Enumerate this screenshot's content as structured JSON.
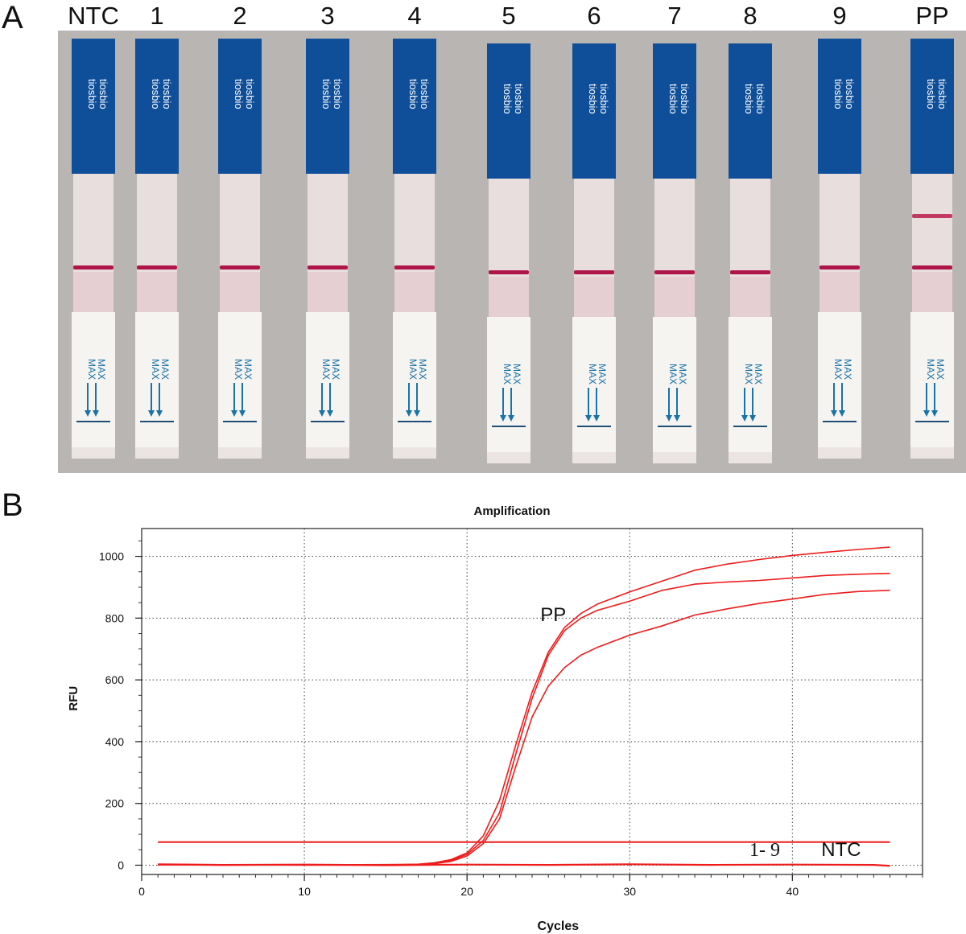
{
  "panels": {
    "a_letter": "A",
    "b_letter": "B"
  },
  "strips": {
    "lane_labels": [
      "NTC",
      "1",
      "2",
      "3",
      "4",
      "5",
      "6",
      "7",
      "8",
      "9",
      "PP"
    ],
    "brand_text": "tiosbio",
    "max_text": "MAX",
    "colors": {
      "background": "#b9b5b3",
      "handle": "#0f4f9a",
      "strip": "#e9dede",
      "control_line": "#b0154a",
      "test_line": "#c23a62",
      "arrow": "#1a73a8"
    },
    "test_line_present": [
      false,
      false,
      false,
      false,
      false,
      false,
      false,
      false,
      false,
      false,
      true
    ],
    "control_line_present": [
      true,
      true,
      true,
      true,
      true,
      true,
      true,
      true,
      true,
      true,
      true
    ]
  },
  "chart_data": {
    "type": "line",
    "title": "Amplification",
    "xlabel": "Cycles",
    "ylabel": "RFU",
    "xlim": [
      0,
      48
    ],
    "ylim": [
      -30,
      1090
    ],
    "xticks": [
      0,
      10,
      20,
      30,
      40
    ],
    "yticks": [
      0,
      200,
      400,
      600,
      800,
      1000
    ],
    "grid": true,
    "line_color": "#ee1c1c",
    "threshold": 75,
    "series": [
      {
        "x": [
          1,
          5,
          10,
          15,
          17,
          18,
          19,
          20,
          21,
          22,
          23,
          24,
          25,
          26,
          27,
          28,
          30,
          32,
          34,
          36,
          38,
          40,
          42,
          44,
          46
        ],
        "values": [
          2,
          1,
          1,
          2,
          3,
          8,
          18,
          40,
          95,
          210,
          390,
          560,
          690,
          770,
          815,
          845,
          885,
          920,
          955,
          975,
          990,
          1003,
          1013,
          1022,
          1030
        ]
      },
      {
        "x": [
          1,
          5,
          10,
          15,
          17,
          18,
          19,
          20,
          21,
          22,
          23,
          24,
          25,
          26,
          27,
          28,
          30,
          32,
          34,
          36,
          38,
          40,
          42,
          44,
          46
        ],
        "values": [
          1,
          1,
          0,
          1,
          3,
          7,
          15,
          35,
          80,
          170,
          360,
          540,
          680,
          760,
          800,
          825,
          855,
          890,
          910,
          917,
          922,
          930,
          938,
          942,
          945
        ]
      },
      {
        "x": [
          1,
          5,
          10,
          15,
          17,
          18,
          19,
          20,
          21,
          22,
          23,
          24,
          25,
          26,
          27,
          28,
          30,
          32,
          34,
          36,
          38,
          40,
          42,
          44,
          46
        ],
        "values": [
          1,
          0,
          1,
          1,
          2,
          5,
          12,
          30,
          70,
          150,
          320,
          480,
          580,
          640,
          680,
          705,
          745,
          775,
          810,
          830,
          848,
          862,
          877,
          886,
          890
        ]
      },
      {
        "x": [
          1,
          5,
          10,
          15,
          20,
          25,
          30,
          35,
          40,
          45,
          46
        ],
        "values": [
          3,
          1,
          2,
          0,
          2,
          1,
          3,
          1,
          2,
          1,
          -2
        ]
      }
    ],
    "annotations": [
      {
        "text": "PP",
        "x": 25.3,
        "y": 790
      },
      {
        "text": "1- 9",
        "x": 38.3,
        "y": 30
      },
      {
        "text": "NTC",
        "x": 43.0,
        "y": 30
      }
    ]
  }
}
